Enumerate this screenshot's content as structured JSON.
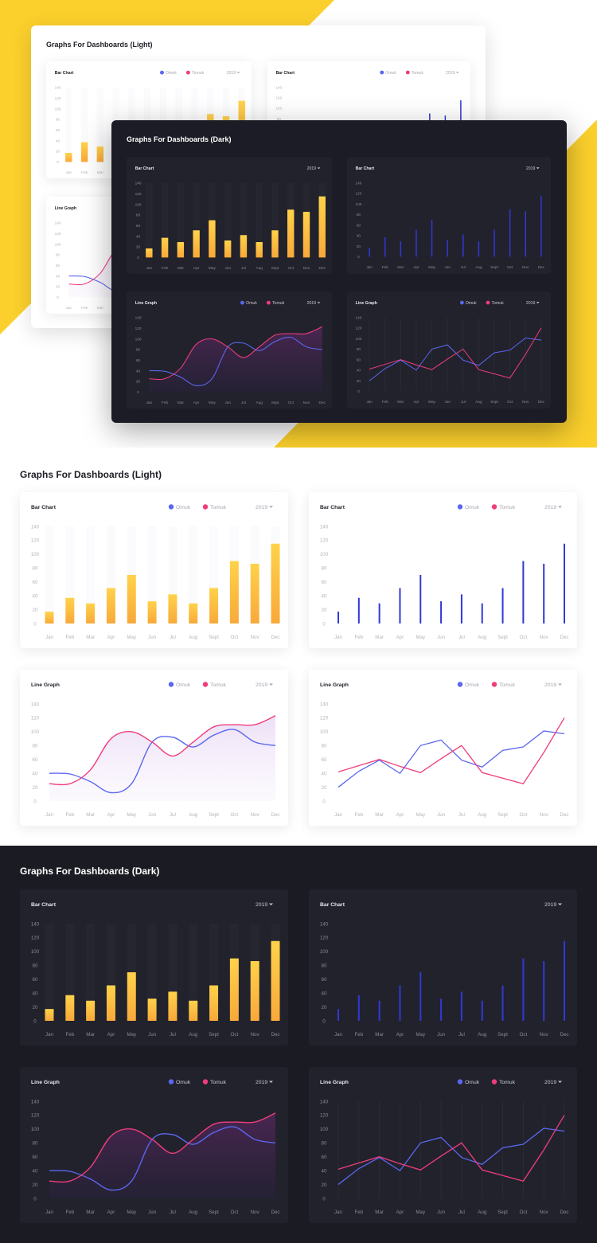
{
  "hero": {
    "light_title": "Graphs For Dashboards (Light)",
    "dark_title": "Graphs For Dashboards (Dark)",
    "accent_color": "#fbd02c"
  },
  "sections": {
    "light_title": "Graphs For Dashboards (Light)",
    "dark_title": "Graphs For Dashboards (Dark)"
  },
  "colors": {
    "omuk": "#5a67f0",
    "tomuk": "#ef3d7c",
    "bar_top": "#ffd24a",
    "bar_bottom": "#f8a93a",
    "thin_bar": "#3138d6",
    "dark_bg": "#1b1b24",
    "dark_card": "#22222c"
  },
  "year_select": "2019",
  "chart_data": [
    {
      "type": "bar",
      "title": "Bar Chart",
      "legend": [
        "Omuk",
        "Tomuk"
      ],
      "categories": [
        "Jan",
        "Feb",
        "Mar",
        "Apr",
        "May",
        "Jun",
        "Jul",
        "Aug",
        "Sept",
        "Oct",
        "Nov",
        "Dec"
      ],
      "values": [
        17,
        37,
        29,
        51,
        70,
        32,
        42,
        29,
        51,
        90,
        86,
        115
      ],
      "yticks": [
        0,
        20,
        40,
        60,
        80,
        100,
        120,
        140
      ],
      "ylim": [
        0,
        140
      ]
    },
    {
      "type": "bar",
      "title": "Bar Chart",
      "legend": [
        "Omuk",
        "Tomuk"
      ],
      "categories": [
        "Jan",
        "Feb",
        "Mar",
        "Apr",
        "May",
        "Jun",
        "Jul",
        "Aug",
        "Sept",
        "Oct",
        "Nov",
        "Dec"
      ],
      "values": [
        17,
        37,
        29,
        51,
        70,
        32,
        42,
        29,
        51,
        90,
        86,
        115
      ],
      "yticks": [
        0,
        20,
        40,
        60,
        80,
        100,
        120,
        140
      ],
      "ylim": [
        0,
        140
      ]
    },
    {
      "type": "line",
      "title": "Line Graph",
      "legend": [
        "Omuk",
        "Tomuk"
      ],
      "categories": [
        "Jan",
        "Feb",
        "Mar",
        "Apr",
        "May",
        "Jun",
        "Jul",
        "Aug",
        "Sept",
        "Oct",
        "Nov",
        "Dec"
      ],
      "series": [
        {
          "name": "Omuk",
          "values": [
            40,
            39,
            28,
            12,
            25,
            85,
            92,
            78,
            95,
            103,
            85,
            80
          ]
        },
        {
          "name": "Tomuk",
          "values": [
            25,
            25,
            45,
            90,
            100,
            85,
            65,
            85,
            107,
            110,
            110,
            123
          ]
        }
      ],
      "yticks": [
        0,
        20,
        40,
        60,
        80,
        100,
        120,
        140
      ],
      "ylim": [
        0,
        140
      ]
    },
    {
      "type": "line",
      "title": "Line Graph",
      "legend": [
        "Omuk",
        "Tomuk"
      ],
      "categories": [
        "Jan",
        "Feb",
        "Mar",
        "Apr",
        "May",
        "Jun",
        "Jul",
        "Aug",
        "Sept",
        "Oct",
        "Nov",
        "Dec"
      ],
      "series": [
        {
          "name": "Omuk",
          "values": [
            20,
            43,
            59,
            40,
            80,
            88,
            59,
            49,
            73,
            78,
            101,
            97
          ]
        },
        {
          "name": "Tomuk",
          "values": [
            42,
            51,
            60,
            50,
            41,
            61,
            80,
            41,
            33,
            25,
            70,
            120
          ]
        }
      ],
      "yticks": [
        0,
        20,
        40,
        60,
        80,
        100,
        120,
        140
      ],
      "ylim": [
        0,
        140
      ]
    }
  ]
}
